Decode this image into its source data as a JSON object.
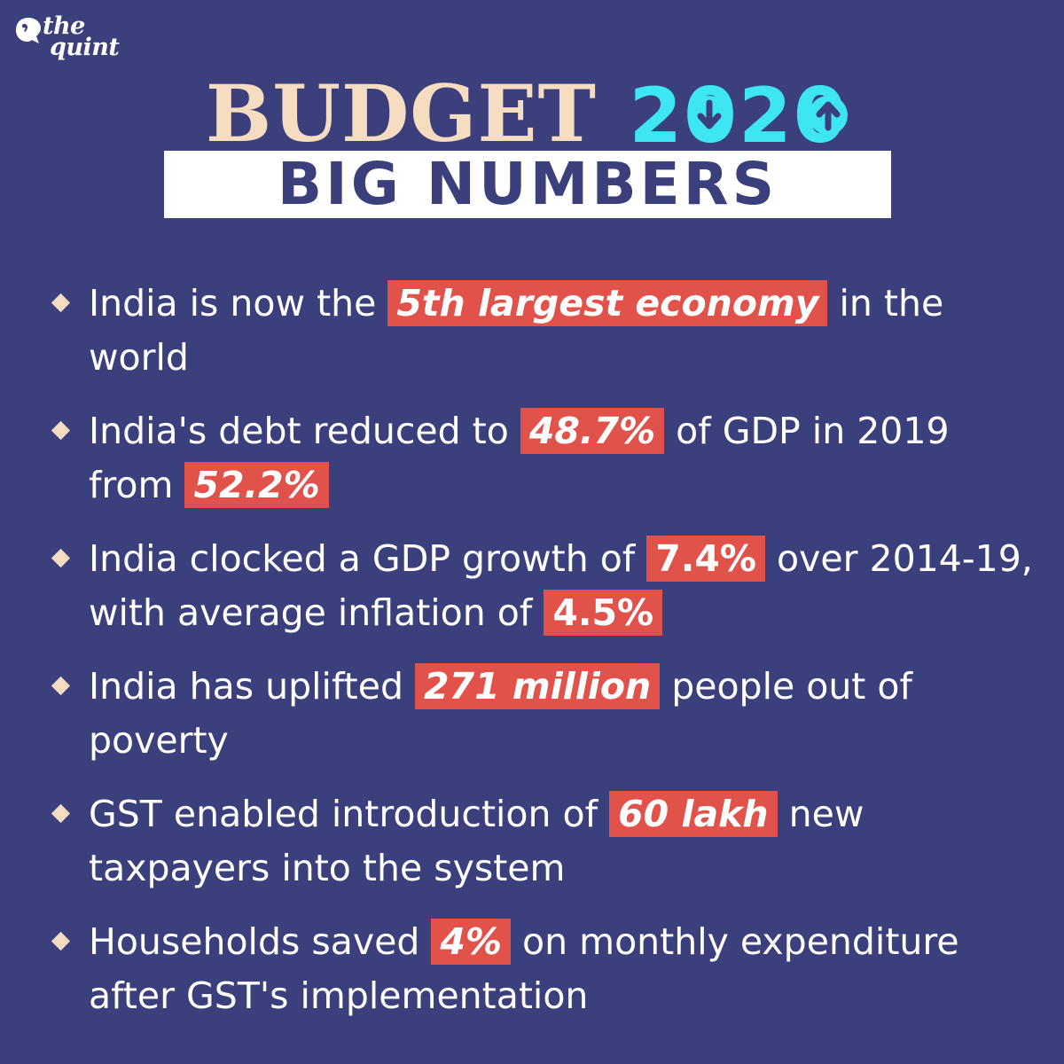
{
  "brand": {
    "line1": "the",
    "line2": "quint"
  },
  "header": {
    "title": "BUDGET",
    "year": "2020",
    "subtitle": "BIG NUMBERS"
  },
  "colors": {
    "background": "#3b3f7c",
    "title": "#f6dcc0",
    "year": "#3ee6f4",
    "highlight": "#e0524a",
    "bullet": "#f6dcc0"
  },
  "bullets": [
    {
      "pre": "India is now the ",
      "highlight": "5th largest economy",
      "post": " in the world"
    },
    {
      "pre": "India's debt reduced to ",
      "highlight": "48.7%",
      "mid": " of GDP in 2019 from ",
      "highlight2": "52.2%",
      "post": ""
    },
    {
      "pre": "India clocked a GDP growth of ",
      "highlight": "7.4%",
      "mid": " over 2014-19, with average inflation of ",
      "highlight2": "4.5%",
      "post": ""
    },
    {
      "pre": "India has uplifted ",
      "highlight": "271 million",
      "post": " people out of poverty"
    },
    {
      "pre": "GST enabled introduction of ",
      "highlight": "60 lakh",
      "post": " new taxpayers into the system"
    },
    {
      "pre": "Households saved ",
      "highlight": "4%",
      "post": " on monthly expenditure after GST's implementation"
    }
  ]
}
